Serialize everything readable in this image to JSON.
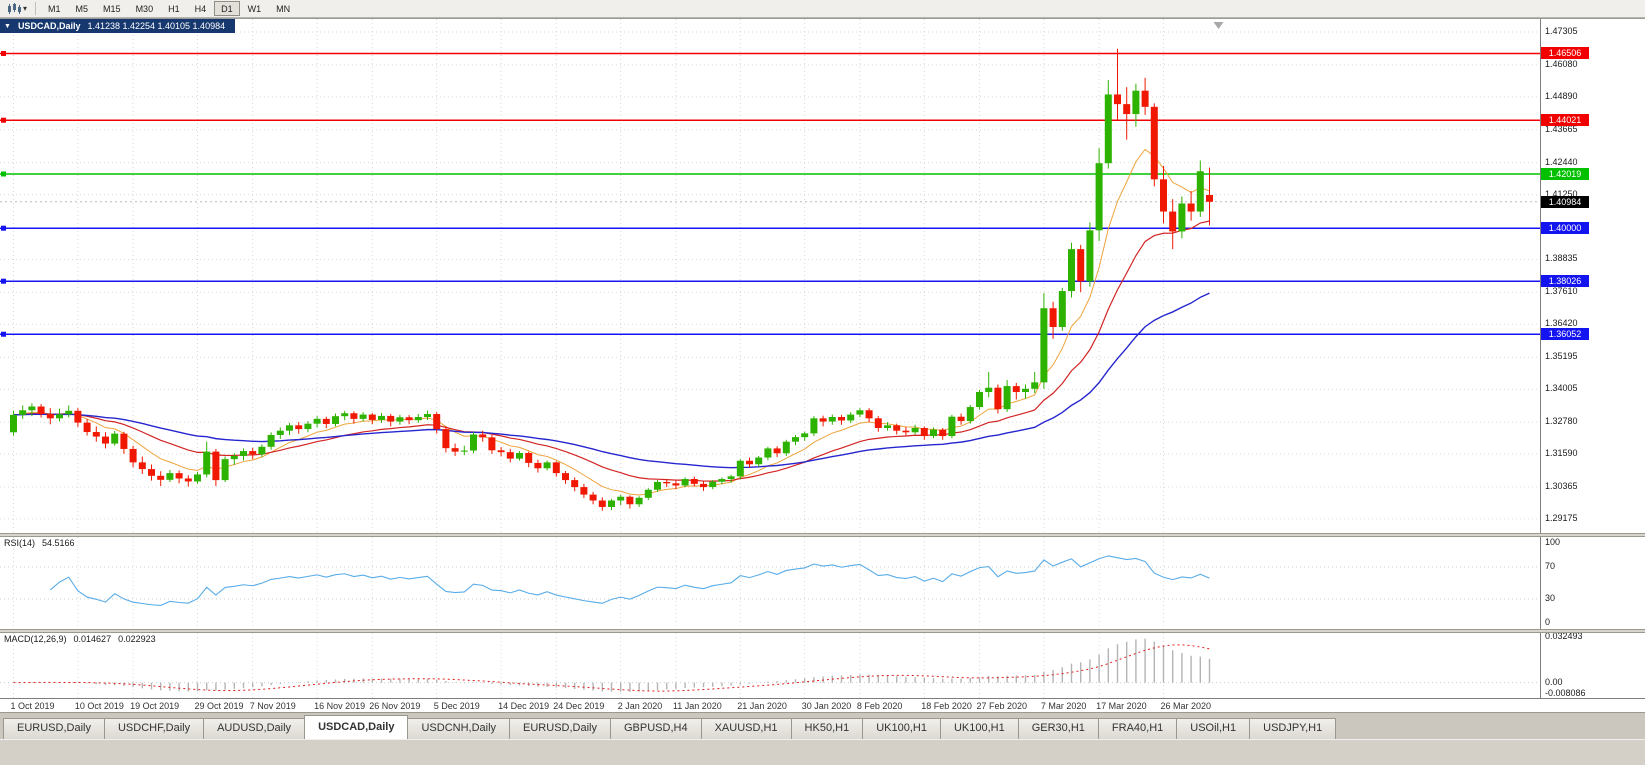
{
  "toolbar": {
    "chart_type_icon": "candlestick-chart-icon",
    "dropdown_icon": "chevron-down-icon",
    "timeframes": [
      "M1",
      "M5",
      "M15",
      "M30",
      "H1",
      "H4",
      "D1",
      "W1",
      "MN"
    ],
    "active_timeframe": "D1"
  },
  "chart": {
    "title": "USDCAD,Daily",
    "ohlc_text": "1.41238 1.42254 1.40105 1.40984",
    "open": "1.41238",
    "high": "1.42254",
    "low": "1.40105",
    "close": "1.40984",
    "current_price": {
      "value": "1.40984",
      "color": "#000000"
    },
    "price_axis": {
      "ticks": [
        "1.47305",
        "1.46080",
        "1.44890",
        "1.43665",
        "1.42440",
        "1.41250",
        "1.38835",
        "1.37610",
        "1.36420",
        "1.35195",
        "1.34005",
        "1.32780",
        "1.31590",
        "1.30365",
        "1.29175"
      ]
    },
    "levels": [
      {
        "value": "1.46506",
        "price": 1.46506,
        "color": "#f20000",
        "type": "resistance"
      },
      {
        "value": "1.44021",
        "price": 1.44021,
        "color": "#f20000",
        "type": "resistance"
      },
      {
        "value": "1.42019",
        "price": 1.42019,
        "color": "#00c000",
        "type": "pivot"
      },
      {
        "value": "1.40000",
        "price": 1.4,
        "color": "#1414f0",
        "type": "support"
      },
      {
        "value": "1.38026",
        "price": 1.38026,
        "color": "#1414f0",
        "type": "support"
      },
      {
        "value": "1.36052",
        "price": 1.36052,
        "color": "#1414f0",
        "type": "support"
      }
    ],
    "date_axis": {
      "labels": [
        "1 Oct 2019",
        "10 Oct 2019",
        "19 Oct 2019",
        "29 Oct 2019",
        "7 Nov 2019",
        "16 Nov 2019",
        "26 Nov 2019",
        "5 Dec 2019",
        "14 Dec 2019",
        "24 Dec 2019",
        "2 Jan 2020",
        "11 Jan 2020",
        "21 Jan 2020",
        "30 Jan 2020",
        "8 Feb 2020",
        "18 Feb 2020",
        "27 Feb 2020",
        "7 Mar 2020",
        "17 Mar 2020",
        "26 Mar 2020"
      ],
      "bar_indices": [
        0,
        7,
        13,
        20,
        26,
        33,
        39,
        46,
        53,
        59,
        66,
        72,
        79,
        86,
        92,
        99,
        105,
        112,
        118,
        125
      ]
    }
  },
  "chart_data": {
    "type": "candlestick",
    "symbol": "USDCAD",
    "timeframe": "Daily",
    "price_range": {
      "top": 1.4779,
      "bottom": 1.2865
    },
    "colors": {
      "grid": "#d9d9d9",
      "bull": "#2db200",
      "bear": "#f01800",
      "histogram": "#b4b4b4",
      "macd_signal": "#e02020"
    },
    "moving_averages": [
      {
        "name": "fast-ma",
        "type": "ema",
        "period": 8,
        "color": "#eda33b",
        "width": 1
      },
      {
        "name": "medium-ma",
        "type": "ema",
        "period": 20,
        "color": "#d32424",
        "width": 1.2
      },
      {
        "name": "slow-ma",
        "type": "ema",
        "period": 45,
        "color": "#2626cf",
        "width": 1.4
      }
    ],
    "candles": [
      [
        1.324,
        1.332,
        1.3228,
        1.3305
      ],
      [
        1.3305,
        1.334,
        1.329,
        1.3322
      ],
      [
        1.3322,
        1.3348,
        1.33,
        1.3336
      ],
      [
        1.3336,
        1.3345,
        1.3295,
        1.3308
      ],
      [
        1.3308,
        1.333,
        1.327,
        1.3292
      ],
      [
        1.3292,
        1.3328,
        1.328,
        1.3307
      ],
      [
        1.3307,
        1.334,
        1.3295,
        1.332
      ],
      [
        1.332,
        1.333,
        1.326,
        1.3276
      ],
      [
        1.3276,
        1.329,
        1.3228,
        1.3241
      ],
      [
        1.3241,
        1.3262,
        1.3205,
        1.3224
      ],
      [
        1.3224,
        1.324,
        1.318,
        1.3198
      ],
      [
        1.3198,
        1.3245,
        1.319,
        1.3235
      ],
      [
        1.3235,
        1.3242,
        1.316,
        1.3178
      ],
      [
        1.3178,
        1.319,
        1.311,
        1.3128
      ],
      [
        1.3128,
        1.315,
        1.3085,
        1.3103
      ],
      [
        1.3103,
        1.312,
        1.306,
        1.3078
      ],
      [
        1.3078,
        1.3095,
        1.304,
        1.3063
      ],
      [
        1.3063,
        1.31,
        1.3055,
        1.3088
      ],
      [
        1.3088,
        1.3098,
        1.305,
        1.3068
      ],
      [
        1.3068,
        1.308,
        1.3038,
        1.3057
      ],
      [
        1.3057,
        1.3092,
        1.3048,
        1.3083
      ],
      [
        1.3083,
        1.3205,
        1.3072,
        1.3168
      ],
      [
        1.3168,
        1.3178,
        1.304,
        1.3062
      ],
      [
        1.3062,
        1.315,
        1.3055,
        1.314
      ],
      [
        1.314,
        1.3162,
        1.3118,
        1.3152
      ],
      [
        1.3152,
        1.318,
        1.3135,
        1.317
      ],
      [
        1.317,
        1.3182,
        1.314,
        1.3158
      ],
      [
        1.3158,
        1.3195,
        1.3148,
        1.3186
      ],
      [
        1.3186,
        1.324,
        1.3175,
        1.323
      ],
      [
        1.323,
        1.3258,
        1.3215,
        1.3246
      ],
      [
        1.3246,
        1.3275,
        1.323,
        1.3266
      ],
      [
        1.3266,
        1.3278,
        1.3235,
        1.3252
      ],
      [
        1.3252,
        1.3282,
        1.324,
        1.3272
      ],
      [
        1.3272,
        1.33,
        1.3258,
        1.329
      ],
      [
        1.329,
        1.3298,
        1.3255,
        1.3271
      ],
      [
        1.3271,
        1.331,
        1.3262,
        1.33
      ],
      [
        1.33,
        1.332,
        1.3285,
        1.3311
      ],
      [
        1.3311,
        1.3318,
        1.3272,
        1.329
      ],
      [
        1.329,
        1.3315,
        1.328,
        1.3306
      ],
      [
        1.3306,
        1.3312,
        1.327,
        1.3286
      ],
      [
        1.3286,
        1.3312,
        1.3275,
        1.3301
      ],
      [
        1.3301,
        1.3308,
        1.3262,
        1.328
      ],
      [
        1.328,
        1.3305,
        1.3268,
        1.3296
      ],
      [
        1.3296,
        1.3304,
        1.327,
        1.3285
      ],
      [
        1.3285,
        1.3308,
        1.3275,
        1.3297
      ],
      [
        1.3297,
        1.332,
        1.3286,
        1.3308
      ],
      [
        1.3308,
        1.3315,
        1.3235,
        1.3252
      ],
      [
        1.3252,
        1.3262,
        1.3165,
        1.3181
      ],
      [
        1.3181,
        1.3198,
        1.3152,
        1.3168
      ],
      [
        1.3168,
        1.319,
        1.3155,
        1.3172
      ],
      [
        1.3172,
        1.324,
        1.3162,
        1.3232
      ],
      [
        1.3232,
        1.3246,
        1.3205,
        1.3221
      ],
      [
        1.3221,
        1.323,
        1.316,
        1.3173
      ],
      [
        1.3173,
        1.3185,
        1.315,
        1.3166
      ],
      [
        1.3166,
        1.3178,
        1.3128,
        1.3142
      ],
      [
        1.3142,
        1.317,
        1.3135,
        1.3163
      ],
      [
        1.3163,
        1.3168,
        1.311,
        1.3126
      ],
      [
        1.3126,
        1.3138,
        1.309,
        1.3106
      ],
      [
        1.3106,
        1.3135,
        1.3098,
        1.3128
      ],
      [
        1.3128,
        1.3132,
        1.3075,
        1.3088
      ],
      [
        1.3088,
        1.3096,
        1.3048,
        1.3062
      ],
      [
        1.3062,
        1.3072,
        1.302,
        1.3036
      ],
      [
        1.3036,
        1.3048,
        1.2995,
        1.3008
      ],
      [
        1.3008,
        1.3018,
        1.2972,
        1.2986
      ],
      [
        1.2986,
        1.2998,
        1.2948,
        1.2962
      ],
      [
        1.2962,
        1.2992,
        1.295,
        1.2986
      ],
      [
        1.2986,
        1.3008,
        1.2968,
        1.3
      ],
      [
        1.3,
        1.3005,
        1.2956,
        1.2972
      ],
      [
        1.2972,
        1.3002,
        1.2962,
        1.2996
      ],
      [
        1.2996,
        1.3032,
        1.2988,
        1.3026
      ],
      [
        1.3026,
        1.3062,
        1.3018,
        1.3055
      ],
      [
        1.3055,
        1.3065,
        1.3036,
        1.305
      ],
      [
        1.305,
        1.306,
        1.3028,
        1.3042
      ],
      [
        1.3042,
        1.3072,
        1.3035,
        1.3066
      ],
      [
        1.3066,
        1.3075,
        1.3038,
        1.3048
      ],
      [
        1.3048,
        1.3058,
        1.3022,
        1.3036
      ],
      [
        1.3036,
        1.3062,
        1.3028,
        1.3056
      ],
      [
        1.3056,
        1.3072,
        1.3046,
        1.3066
      ],
      [
        1.3066,
        1.3082,
        1.3052,
        1.3076
      ],
      [
        1.3076,
        1.314,
        1.3066,
        1.3134
      ],
      [
        1.3134,
        1.3146,
        1.3108,
        1.3121
      ],
      [
        1.3121,
        1.3152,
        1.3112,
        1.3146
      ],
      [
        1.3146,
        1.3186,
        1.3136,
        1.318
      ],
      [
        1.318,
        1.3188,
        1.3148,
        1.3162
      ],
      [
        1.3162,
        1.3212,
        1.3152,
        1.3205
      ],
      [
        1.3205,
        1.323,
        1.3192,
        1.3222
      ],
      [
        1.3222,
        1.3242,
        1.3208,
        1.3236
      ],
      [
        1.3236,
        1.33,
        1.3226,
        1.3292
      ],
      [
        1.3292,
        1.3302,
        1.3262,
        1.328
      ],
      [
        1.328,
        1.3306,
        1.3268,
        1.3297
      ],
      [
        1.3297,
        1.3305,
        1.3268,
        1.3284
      ],
      [
        1.3284,
        1.3315,
        1.3274,
        1.3306
      ],
      [
        1.3306,
        1.333,
        1.3296,
        1.3322
      ],
      [
        1.3322,
        1.333,
        1.3278,
        1.3292
      ],
      [
        1.3292,
        1.33,
        1.3242,
        1.3256
      ],
      [
        1.3256,
        1.3278,
        1.3246,
        1.3266
      ],
      [
        1.3266,
        1.3272,
        1.3232,
        1.3246
      ],
      [
        1.3246,
        1.326,
        1.3228,
        1.324
      ],
      [
        1.324,
        1.3268,
        1.3232,
        1.3256
      ],
      [
        1.3256,
        1.3262,
        1.3212,
        1.3226
      ],
      [
        1.3226,
        1.3258,
        1.3218,
        1.325
      ],
      [
        1.325,
        1.3256,
        1.3212,
        1.3226
      ],
      [
        1.3226,
        1.3305,
        1.3218,
        1.3298
      ],
      [
        1.3298,
        1.331,
        1.3268,
        1.3282
      ],
      [
        1.3282,
        1.3342,
        1.3272,
        1.3334
      ],
      [
        1.3334,
        1.3398,
        1.3324,
        1.339
      ],
      [
        1.339,
        1.3465,
        1.337,
        1.3406
      ],
      [
        1.3406,
        1.3418,
        1.331,
        1.3326
      ],
      [
        1.3326,
        1.3435,
        1.3316,
        1.3412
      ],
      [
        1.3412,
        1.3424,
        1.3362,
        1.339
      ],
      [
        1.339,
        1.3418,
        1.3365,
        1.3402
      ],
      [
        1.3402,
        1.3465,
        1.3386,
        1.3426
      ],
      [
        1.3426,
        1.3758,
        1.3402,
        1.3702
      ],
      [
        1.3702,
        1.3726,
        1.3588,
        1.3632
      ],
      [
        1.3632,
        1.3778,
        1.3618,
        1.3766
      ],
      [
        1.3766,
        1.3946,
        1.3742,
        1.3922
      ],
      [
        1.3922,
        1.3938,
        1.3762,
        1.3802
      ],
      [
        1.3802,
        1.4022,
        1.3782,
        1.3992
      ],
      [
        1.3992,
        1.4298,
        1.3952,
        1.4242
      ],
      [
        1.4242,
        1.4552,
        1.4222,
        1.4498
      ],
      [
        1.4498,
        1.4668,
        1.4402,
        1.4462
      ],
      [
        1.4462,
        1.4525,
        1.433,
        1.4425
      ],
      [
        1.4425,
        1.4538,
        1.4378,
        1.4512
      ],
      [
        1.4512,
        1.456,
        1.4422,
        1.4452
      ],
      [
        1.4452,
        1.4465,
        1.4156,
        1.4182
      ],
      [
        1.4182,
        1.4232,
        1.4018,
        1.4062
      ],
      [
        1.4062,
        1.4108,
        1.3922,
        1.3988
      ],
      [
        1.3988,
        1.4118,
        1.3962,
        1.4092
      ],
      [
        1.4092,
        1.4138,
        1.4028,
        1.4062
      ],
      [
        1.4062,
        1.4252,
        1.4042,
        1.4212
      ],
      [
        1.41238,
        1.42254,
        1.40105,
        1.40984
      ]
    ]
  },
  "rsi": {
    "label": "RSI(14)",
    "value": "54.5166",
    "line_color": "#58ace8",
    "levels": [
      "100",
      "70",
      "30",
      "0"
    ]
  },
  "macd": {
    "label": "MACD(12,26,9)",
    "main_value": "0.014627",
    "signal_value": "0.022923",
    "axis": [
      "0.032493",
      "0.00",
      "-0.008086"
    ]
  },
  "tabs": {
    "active_index": 3,
    "items": [
      {
        "label": "EURUSD,Daily"
      },
      {
        "label": "USDCHF,Daily"
      },
      {
        "label": "AUDUSD,Daily"
      },
      {
        "label": "USDCAD,Daily"
      },
      {
        "label": "USDCNH,Daily"
      },
      {
        "label": "EURUSD,Daily"
      },
      {
        "label": "GBPUSD,H4"
      },
      {
        "label": "XAUUSD,H1"
      },
      {
        "label": "HK50,H1"
      },
      {
        "label": "UK100,H1"
      },
      {
        "label": "UK100,H1"
      },
      {
        "label": "GER30,H1"
      },
      {
        "label": "FRA40,H1"
      },
      {
        "label": "USOil,H1"
      },
      {
        "label": "USDJPY,H1"
      }
    ]
  }
}
